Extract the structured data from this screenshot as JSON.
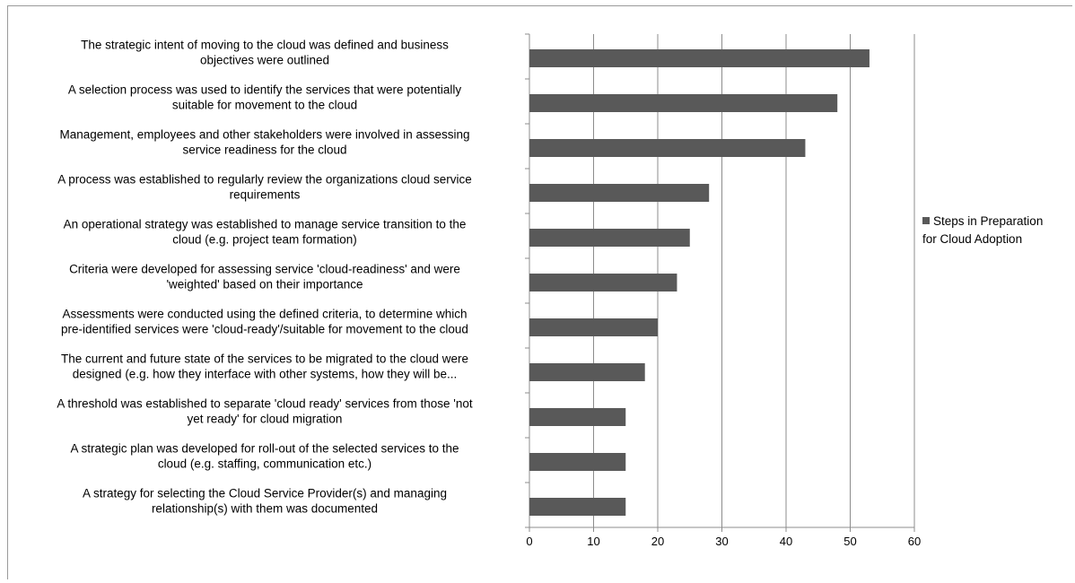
{
  "chart_data": {
    "type": "bar",
    "orientation": "horizontal",
    "title": "",
    "xlabel": "",
    "ylabel": "",
    "xlim": [
      0,
      60
    ],
    "x_ticks": [
      0,
      10,
      20,
      30,
      40,
      50,
      60
    ],
    "grid": "vertical",
    "legend_position": "right",
    "bar_color": "#595959",
    "categories": [
      [
        "The strategic intent of moving to the cloud was defined and business",
        "objectives were outlined"
      ],
      [
        "A selection process was used to identify the services that were potentially",
        "suitable for movement to the cloud"
      ],
      [
        "Management, employees and other stakeholders were involved in assessing",
        "service readiness for the cloud"
      ],
      [
        "A process was established to regularly review the organizations cloud service",
        "requirements"
      ],
      [
        "An operational strategy was established to manage service transition to the",
        "cloud (e.g. project team formation)"
      ],
      [
        "Criteria were developed for assessing service 'cloud-readiness' and were",
        "'weighted' based on their importance"
      ],
      [
        "Assessments were conducted using the defined criteria, to determine which",
        "pre-identified services were 'cloud-ready'/suitable for movement to the cloud"
      ],
      [
        "The current and future state of the services to be migrated to the cloud were",
        "designed (e.g. how they interface with other systems, how they will be..."
      ],
      [
        "A threshold was established to separate 'cloud ready' services from those 'not",
        "yet ready' for cloud migration"
      ],
      [
        "A strategic plan was developed for roll-out of the selected services to the",
        "cloud (e.g. staffing, communication etc.)"
      ],
      [
        "A strategy for selecting the Cloud Service Provider(s) and managing",
        "relationship(s) with them was documented"
      ]
    ],
    "series": [
      {
        "name": "Steps in Preparation for Cloud Adoption",
        "legend_lines": [
          "Steps in Preparation",
          "for Cloud Adoption"
        ],
        "values": [
          53,
          48,
          43,
          28,
          25,
          23,
          20,
          18,
          15,
          15,
          15
        ]
      }
    ]
  }
}
